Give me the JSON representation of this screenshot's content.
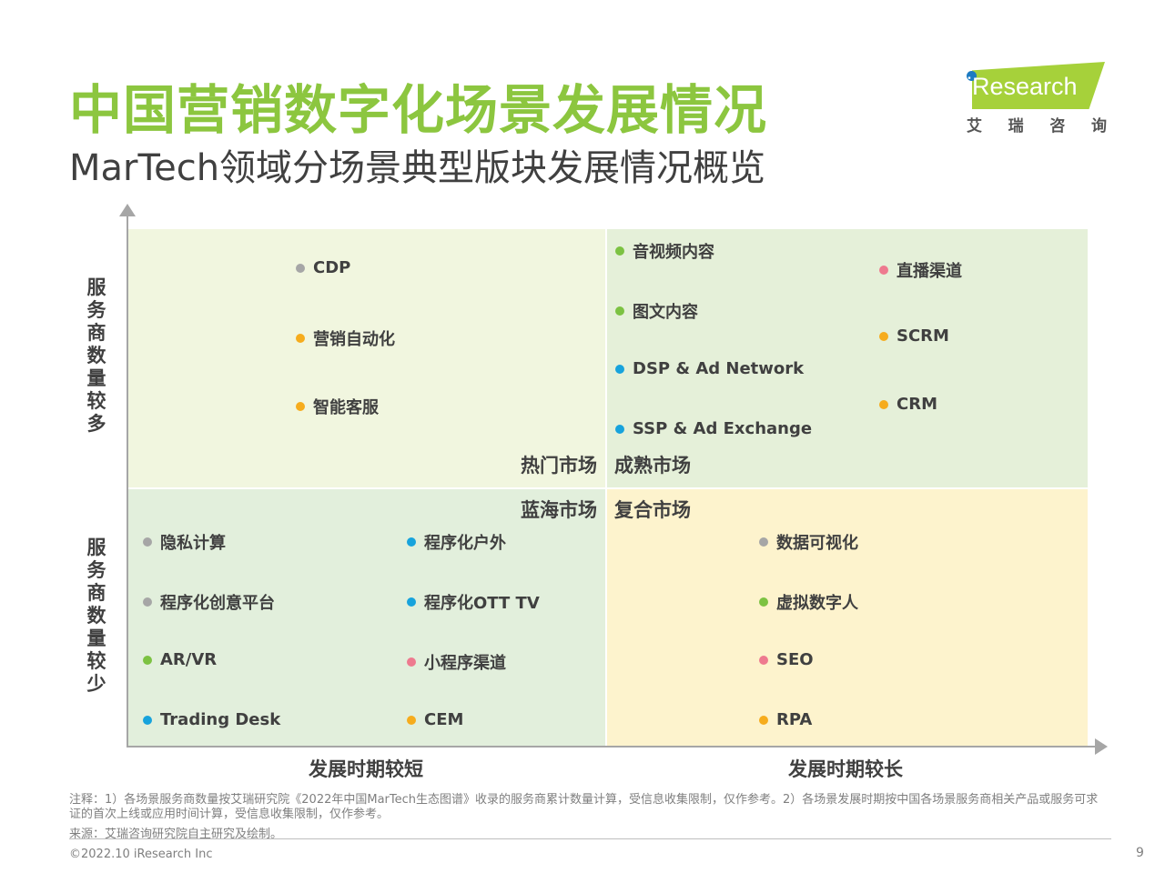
{
  "header": {
    "title": "中国营销数字化场景发展情况",
    "subtitle": "MarTech领域分场景典型版块发展情况概览"
  },
  "logo": {
    "brand": "iResearch",
    "cn_chars": [
      "艾",
      "瑞",
      "咨",
      "询"
    ]
  },
  "axes": {
    "y_top": "服务商数量较多",
    "y_bottom": "服务商数量较少",
    "x_left": "发展时期较短",
    "x_right": "发展时期较长"
  },
  "quadrants": {
    "top_left": "热门市场",
    "top_right": "成熟市场",
    "bottom_left": "蓝海市场",
    "bottom_right": "复合市场"
  },
  "colors": {
    "gray": "#a6a6a6",
    "orange": "#f6ac1d",
    "green": "#7cc242",
    "blue": "#17a3dc",
    "pink": "#ee7a8f"
  },
  "items": {
    "cdp": {
      "label": "CDP",
      "color": "#a6a6a6"
    },
    "marketing_automation": {
      "label": "营销自动化",
      "color": "#f6ac1d"
    },
    "smart_service": {
      "label": "智能客服",
      "color": "#f6ac1d"
    },
    "audio_video": {
      "label": "音视频内容",
      "color": "#7cc242"
    },
    "image_text": {
      "label": "图文内容",
      "color": "#7cc242"
    },
    "dsp": {
      "label": "DSP & Ad Network",
      "color": "#17a3dc"
    },
    "ssp": {
      "label": "SSP & Ad Exchange",
      "color": "#17a3dc"
    },
    "live_channel": {
      "label": "直播渠道",
      "color": "#ee7a8f"
    },
    "scrm": {
      "label": "SCRM",
      "color": "#f6ac1d"
    },
    "crm": {
      "label": "CRM",
      "color": "#f6ac1d"
    },
    "privacy_computing": {
      "label": "隐私计算",
      "color": "#a6a6a6"
    },
    "creative_platform": {
      "label": "程序化创意平台",
      "color": "#a6a6a6"
    },
    "ar_vr": {
      "label": "AR/VR",
      "color": "#7cc242"
    },
    "trading_desk": {
      "label": "Trading Desk",
      "color": "#17a3dc"
    },
    "programmatic_outdoor": {
      "label": "程序化户外",
      "color": "#17a3dc"
    },
    "programmatic_ott": {
      "label": "程序化OTT TV",
      "color": "#17a3dc"
    },
    "mini_program": {
      "label": "小程序渠道",
      "color": "#ee7a8f"
    },
    "cem": {
      "label": "CEM",
      "color": "#f6ac1d"
    },
    "data_visualization": {
      "label": "数据可视化",
      "color": "#a6a6a6"
    },
    "virtual_human": {
      "label": "虚拟数字人",
      "color": "#7cc242"
    },
    "seo": {
      "label": "SEO",
      "color": "#ee7a8f"
    },
    "rpa": {
      "label": "RPA",
      "color": "#f6ac1d"
    }
  },
  "footer": {
    "note": "注释：1）各场景服务商数量按艾瑞研究院《2022年中国MarTech生态图谱》收录的服务商累计数量计算，受信息收集限制，仅作参考。2）各场景发展时期按中国各场景服务商相关产品或服务可求证的首次上线或应用时间计算，受信息收集限制，仅作参考。",
    "source": "来源：艾瑞咨询研究院自主研究及绘制。",
    "copyright": "©2022.10 iResearch Inc",
    "page_number": "9"
  }
}
